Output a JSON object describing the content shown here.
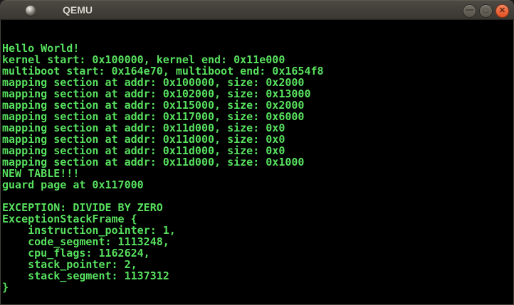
{
  "window": {
    "title": "QEMU",
    "controls": [
      {
        "name": "minimize",
        "glyph": "—"
      },
      {
        "name": "maximize",
        "glyph": "□"
      },
      {
        "name": "close",
        "glyph": "✕"
      }
    ]
  },
  "colors": {
    "terminal_background": "#000000",
    "terminal_text": "#57e05e",
    "titlebar": "#423f3a",
    "close_button": "#e35122"
  },
  "terminal": {
    "lines": [
      "Hello World!",
      "kernel start: 0x100000, kernel end: 0x11e000",
      "multiboot start: 0x164e70, multiboot end: 0x1654f8",
      "mapping section at addr: 0x100000, size: 0x2000",
      "mapping section at addr: 0x102000, size: 0x13000",
      "mapping section at addr: 0x115000, size: 0x2000",
      "mapping section at addr: 0x117000, size: 0x6000",
      "mapping section at addr: 0x11d000, size: 0x0",
      "mapping section at addr: 0x11d000, size: 0x0",
      "mapping section at addr: 0x11d000, size: 0x0",
      "mapping section at addr: 0x11d000, size: 0x1000",
      "NEW TABLE!!!",
      "guard page at 0x117000",
      "",
      "EXCEPTION: DIVIDE BY ZERO",
      "ExceptionStackFrame {",
      "    instruction_pointer: 1,",
      "    code_segment: 1113248,",
      "    cpu_flags: 1162624,",
      "    stack_pointer: 2,",
      "    stack_segment: 1137312",
      "}"
    ]
  }
}
